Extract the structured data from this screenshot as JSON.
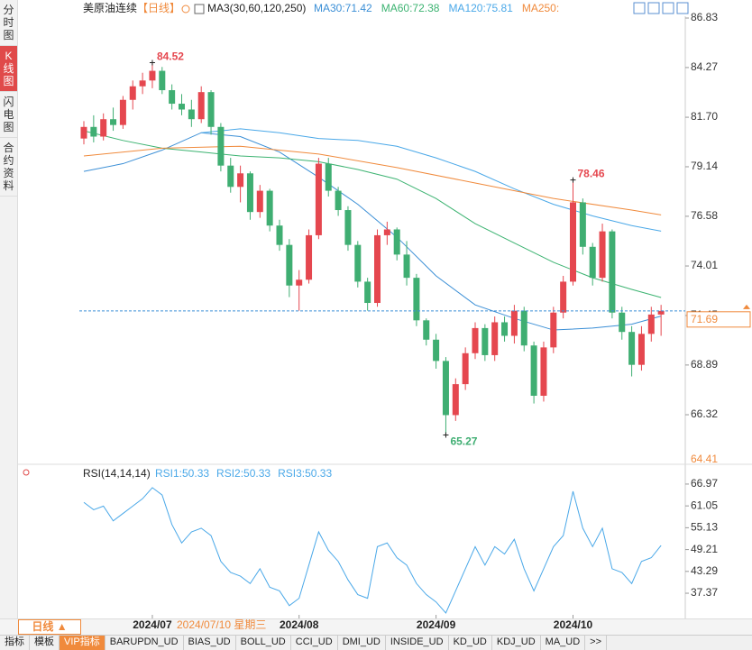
{
  "sidebar": [
    "分时图",
    "K线图",
    "闪电图",
    "合约资料"
  ],
  "header": {
    "symbol": "美原油连续",
    "period": "【日线】",
    "ma_params": "MA3(30,60,120,250)"
  },
  "chart_data": [
    {
      "type": "candlestick",
      "up_color": "#e5474f",
      "down_color": "#3fae72",
      "ylim": [
        64.41,
        86.83
      ],
      "yticks": [
        86.83,
        84.27,
        {
          "value": 81.7,
          "label": "81.70"
        },
        79.14,
        76.58,
        74.01,
        71.45,
        68.89,
        66.32
      ],
      "last_price": 71.69,
      "candles": [
        [
          80.6,
          81.5,
          80.3,
          81.2
        ],
        [
          81.2,
          81.8,
          80.4,
          80.7
        ],
        [
          80.7,
          81.9,
          80.5,
          81.6
        ],
        [
          81.6,
          82.2,
          81.0,
          81.3
        ],
        [
          81.3,
          82.8,
          81.1,
          82.6
        ],
        [
          82.6,
          83.6,
          82.1,
          83.3
        ],
        [
          83.3,
          84.0,
          82.9,
          83.6
        ],
        [
          83.6,
          84.52,
          83.2,
          84.1
        ],
        [
          84.1,
          84.3,
          82.9,
          83.1
        ],
        [
          83.1,
          83.4,
          82.1,
          82.4
        ],
        [
          82.4,
          82.9,
          81.8,
          82.1
        ],
        [
          82.1,
          82.6,
          81.2,
          81.6
        ],
        [
          81.6,
          83.3,
          81.4,
          83.0
        ],
        [
          83.0,
          83.1,
          80.8,
          81.2
        ],
        [
          81.2,
          81.4,
          78.9,
          79.2
        ],
        [
          79.2,
          79.6,
          77.8,
          78.1
        ],
        [
          78.1,
          79.2,
          77.3,
          78.8
        ],
        [
          78.8,
          78.9,
          76.4,
          76.8
        ],
        [
          76.8,
          78.2,
          76.5,
          77.9
        ],
        [
          77.9,
          78.0,
          75.8,
          76.1
        ],
        [
          76.1,
          76.4,
          74.8,
          75.1
        ],
        [
          75.1,
          75.4,
          72.4,
          73.0
        ],
        [
          73.0,
          73.8,
          71.7,
          73.3
        ],
        [
          73.3,
          75.9,
          73.1,
          75.6
        ],
        [
          75.6,
          79.6,
          75.4,
          79.3
        ],
        [
          79.3,
          79.6,
          77.6,
          77.9
        ],
        [
          77.9,
          78.1,
          76.6,
          76.9
        ],
        [
          76.9,
          77.1,
          74.8,
          75.1
        ],
        [
          75.1,
          75.3,
          72.9,
          73.2
        ],
        [
          73.2,
          73.4,
          71.7,
          72.1
        ],
        [
          72.1,
          75.9,
          71.9,
          75.6
        ],
        [
          75.6,
          76.3,
          75.1,
          75.9
        ],
        [
          75.9,
          76.0,
          74.3,
          74.6
        ],
        [
          74.6,
          75.3,
          73.0,
          73.4
        ],
        [
          73.4,
          73.6,
          70.9,
          71.2
        ],
        [
          71.2,
          71.3,
          69.9,
          70.2
        ],
        [
          70.2,
          70.5,
          68.7,
          69.1
        ],
        [
          69.1,
          69.3,
          65.27,
          66.3
        ],
        [
          66.3,
          68.2,
          66.0,
          67.9
        ],
        [
          67.9,
          69.8,
          67.6,
          69.5
        ],
        [
          69.5,
          71.1,
          69.2,
          70.8
        ],
        [
          70.8,
          71.0,
          69.1,
          69.4
        ],
        [
          69.4,
          71.4,
          69.1,
          71.1
        ],
        [
          71.1,
          71.4,
          70.1,
          70.4
        ],
        [
          70.4,
          72.0,
          70.0,
          71.7
        ],
        [
          71.7,
          71.9,
          69.6,
          69.9
        ],
        [
          69.9,
          70.1,
          66.9,
          67.3
        ],
        [
          67.3,
          70.1,
          67.0,
          69.8
        ],
        [
          69.8,
          71.9,
          69.5,
          71.6
        ],
        [
          71.6,
          73.5,
          71.3,
          73.2
        ],
        [
          73.2,
          78.46,
          73.0,
          77.3
        ],
        [
          77.3,
          77.5,
          74.6,
          75.0
        ],
        [
          75.0,
          75.2,
          73.0,
          73.4
        ],
        [
          73.4,
          76.2,
          73.2,
          75.8
        ],
        [
          75.8,
          75.9,
          71.3,
          71.6
        ],
        [
          71.6,
          71.9,
          70.2,
          70.6
        ],
        [
          70.6,
          70.9,
          68.3,
          68.9
        ],
        [
          68.9,
          70.9,
          68.6,
          70.5
        ],
        [
          70.5,
          71.9,
          70.1,
          71.5
        ],
        [
          71.5,
          72.0,
          70.4,
          71.69
        ]
      ],
      "annotations": [
        {
          "x": 7,
          "value": 84.52,
          "color": "#e5474f"
        },
        {
          "x": 37,
          "value": 65.27,
          "color": "#3fae72"
        },
        {
          "x": 50,
          "value": 78.46,
          "color": "#e5474f"
        }
      ],
      "series": [
        {
          "name": "MA30:71.42",
          "color": "#3b8fd6",
          "x": [
            0,
            4,
            8,
            12,
            16,
            20,
            24,
            28,
            32,
            36,
            40,
            44,
            48,
            52,
            56,
            59
          ],
          "values": [
            78.9,
            79.3,
            80.0,
            80.9,
            80.7,
            79.9,
            78.6,
            77.2,
            75.5,
            73.5,
            72.0,
            71.3,
            70.7,
            70.8,
            71.0,
            71.42
          ]
        },
        {
          "name": "MA60:72.38",
          "color": "#3cb371",
          "x": [
            0,
            4,
            8,
            12,
            16,
            20,
            24,
            28,
            32,
            36,
            40,
            44,
            48,
            52,
            56,
            59
          ],
          "values": [
            81.0,
            80.5,
            80.1,
            79.9,
            79.7,
            79.6,
            79.4,
            79.0,
            78.5,
            77.5,
            76.2,
            75.2,
            74.2,
            73.4,
            72.8,
            72.38
          ]
        },
        {
          "name": "MA120:75.81",
          "color": "#4aa8e8",
          "x": [
            12,
            16,
            20,
            24,
            28,
            32,
            36,
            40,
            44,
            48,
            52,
            56,
            59
          ],
          "values": [
            80.9,
            81.1,
            80.9,
            80.6,
            80.5,
            80.2,
            79.6,
            78.9,
            78.0,
            77.2,
            76.6,
            76.1,
            75.81
          ]
        },
        {
          "name": "MA250:",
          "color": "#f08a3c",
          "x": [
            0,
            8,
            16,
            24,
            32,
            40,
            48,
            56,
            59
          ],
          "values": [
            79.7,
            80.1,
            80.2,
            79.8,
            79.1,
            78.3,
            77.5,
            76.9,
            76.65
          ]
        }
      ],
      "x_labels": [
        {
          "value": 7,
          "label": "2024/07"
        },
        {
          "value": 22,
          "label": "2024/08"
        },
        {
          "value": 36,
          "label": "2024/09"
        },
        {
          "value": 50,
          "label": "2024/10"
        }
      ],
      "cursor_label": "2024/07/10 星期三"
    },
    {
      "type": "line",
      "title": "RSI(14,14,14)",
      "ylim": [
        32,
        69.4
      ],
      "yticks": [
        66.97,
        61.05,
        55.13,
        49.21,
        43.29,
        37.37
      ],
      "series": [
        {
          "name": "RSI1:50.33",
          "color": "#4aa8e8",
          "values": [
            62,
            60,
            61,
            57,
            59,
            61,
            63,
            66,
            64,
            56,
            51,
            54,
            55,
            53,
            46,
            43,
            42,
            40,
            44,
            39,
            38,
            34,
            36,
            45,
            54,
            49,
            46,
            41,
            37,
            36,
            50,
            51,
            47,
            45,
            40,
            37,
            35,
            32,
            38,
            44,
            50,
            45,
            50,
            48,
            52,
            44,
            38,
            44,
            50,
            53,
            65,
            55,
            50,
            55,
            44,
            43,
            40,
            46,
            47,
            50.33
          ]
        }
      ],
      "extra_labels": [
        "RSI2:50.33",
        "RSI3:50.33"
      ]
    }
  ],
  "period_button": "日线 ▲",
  "toolbar": [
    "指标",
    "模板",
    "VIP指标",
    "BARUPDN_UD",
    "BIAS_UD",
    "BOLL_UD",
    "CCI_UD",
    "DMI_UD",
    "INSIDE_UD",
    "KD_UD",
    "KDJ_UD",
    "MA_UD",
    ">>"
  ]
}
